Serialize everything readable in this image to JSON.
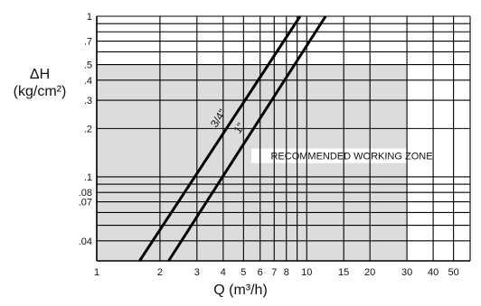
{
  "chart_data": {
    "type": "line",
    "title": "",
    "xlabel": "Q (m³/h)",
    "ylabel_line1": "ΔH",
    "ylabel_line2": "(kg/cm²)",
    "x_scale": "log",
    "y_scale": "log",
    "xlim": [
      1,
      60
    ],
    "ylim": [
      0.03,
      1
    ],
    "x_ticks": [
      1,
      2,
      3,
      4,
      5,
      6,
      7,
      8,
      10,
      15,
      20,
      30,
      40,
      50
    ],
    "x_tick_labels": [
      "1",
      "2",
      "3",
      "4",
      "5",
      "6",
      "7",
      "8",
      "10",
      "15",
      "20",
      "30",
      "40",
      "50"
    ],
    "y_ticks": [
      1,
      0.7,
      0.5,
      0.4,
      0.3,
      0.2,
      0.1,
      0.08,
      0.07,
      0.04
    ],
    "y_tick_labels": [
      "1",
      ".7",
      ".5",
      ".4",
      ".3",
      ".2",
      ".1",
      ".08",
      ".07",
      ".04"
    ],
    "x_gridlines": [
      1,
      2,
      3,
      4,
      5,
      6,
      7,
      8,
      9,
      10,
      15,
      20,
      30,
      40,
      50,
      60
    ],
    "y_gridlines": [
      0.03,
      0.04,
      0.05,
      0.06,
      0.07,
      0.08,
      0.09,
      0.1,
      0.2,
      0.3,
      0.4,
      0.5,
      0.6,
      0.7,
      0.8,
      0.9,
      1
    ],
    "grid": true,
    "shaded_region": {
      "label": "RECOMMENDED WORKING ZONE",
      "x_range": [
        1,
        30
      ],
      "y_range": [
        0.03,
        0.5
      ],
      "color": "#dcdcdc"
    },
    "series": [
      {
        "name": "3/4\"",
        "x": [
          1.6,
          9.3
        ],
        "y": [
          0.03,
          1
        ]
      },
      {
        "name": "1\"",
        "x": [
          2.2,
          12.3
        ],
        "y": [
          0.03,
          1
        ]
      }
    ],
    "line_color": "#000000"
  }
}
